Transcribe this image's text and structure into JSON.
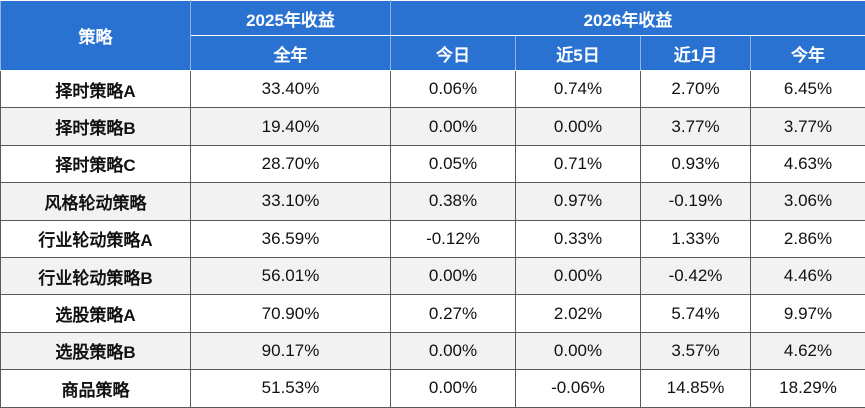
{
  "header": {
    "corner": "策略",
    "groups": [
      "2025年收益",
      "2026年收益"
    ],
    "columns": [
      "全年",
      "今日",
      "近5日",
      "近1月",
      "今年"
    ]
  },
  "table": {
    "rows": [
      [
        "择时策略A",
        "33.40%",
        "0.06%",
        "0.74%",
        "2.70%",
        "6.45%"
      ],
      [
        "择时策略B",
        "19.40%",
        "0.00%",
        "0.00%",
        "3.77%",
        "3.77%"
      ],
      [
        "择时策略C",
        "28.70%",
        "0.05%",
        "0.71%",
        "0.93%",
        "4.63%"
      ],
      [
        "风格轮动策略",
        "33.10%",
        "0.38%",
        "0.97%",
        "-0.19%",
        "3.06%"
      ],
      [
        "行业轮动策略A",
        "36.59%",
        "-0.12%",
        "0.33%",
        "1.33%",
        "2.86%"
      ],
      [
        "行业轮动策略B",
        "56.01%",
        "0.00%",
        "0.00%",
        "-0.42%",
        "4.46%"
      ],
      [
        "选股策略A",
        "70.90%",
        "0.27%",
        "2.02%",
        "5.74%",
        "9.97%"
      ],
      [
        "选股策略B",
        "90.17%",
        "0.00%",
        "0.00%",
        "3.57%",
        "4.62%"
      ],
      [
        "商品策略",
        "51.53%",
        "0.00%",
        "-0.06%",
        "14.85%",
        "18.29%"
      ]
    ]
  }
}
